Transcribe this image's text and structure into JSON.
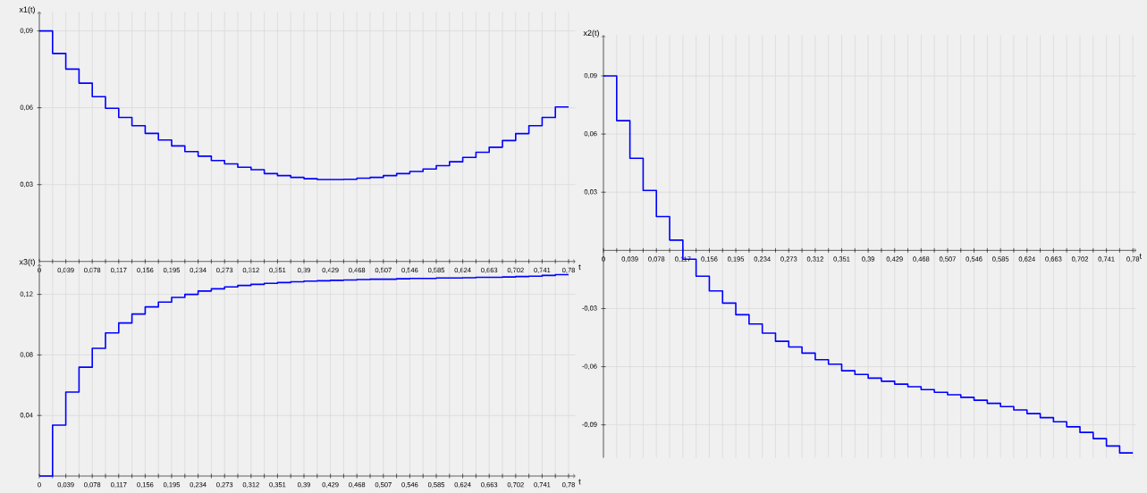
{
  "chart_data": [
    {
      "type": "step",
      "xlabel": "t",
      "ylabel": "x1(t)",
      "color": "#0000ff",
      "grid": true,
      "x": [
        0,
        0.0195,
        0.039,
        0.0585,
        0.078,
        0.0975,
        0.117,
        0.1365,
        0.156,
        0.1755,
        0.195,
        0.2145,
        0.234,
        0.2535,
        0.273,
        0.2925,
        0.312,
        0.3315,
        0.351,
        0.3705,
        0.39,
        0.4095,
        0.429,
        0.4485,
        0.468,
        0.4875,
        0.507,
        0.5265,
        0.546,
        0.5655,
        0.585,
        0.6045,
        0.624,
        0.6435,
        0.663,
        0.6825,
        0.702,
        0.7215,
        0.741,
        0.7605,
        0.78
      ],
      "values": [
        0.09,
        0.0812,
        0.0751,
        0.0696,
        0.0643,
        0.0598,
        0.0562,
        0.053,
        0.05,
        0.0474,
        0.0451,
        0.0429,
        0.0411,
        0.0394,
        0.0381,
        0.0368,
        0.0358,
        0.0343,
        0.0335,
        0.0328,
        0.0323,
        0.032,
        0.032,
        0.0321,
        0.0325,
        0.0328,
        0.0335,
        0.0343,
        0.0351,
        0.0361,
        0.0374,
        0.0389,
        0.0406,
        0.0426,
        0.0446,
        0.0472,
        0.0499,
        0.053,
        0.0562,
        0.0603,
        0.0603
      ],
      "xlim": [
        0,
        0.79
      ],
      "ylim": [
        0,
        0.0975
      ],
      "xticks": [
        0,
        {
          "value": 0.0195,
          "label": null
        },
        {
          "value": 0.039,
          "label": "0,039"
        },
        {
          "value": 0.0585,
          "label": null
        },
        {
          "value": 0.078,
          "label": "0,078"
        },
        {
          "value": 0.0975,
          "label": null
        },
        {
          "value": 0.117,
          "label": "0,117"
        },
        {
          "value": 0.1365,
          "label": null
        },
        {
          "value": 0.156,
          "label": "0,156"
        },
        {
          "value": 0.1755,
          "label": null
        },
        {
          "value": 0.195,
          "label": "0,195"
        },
        {
          "value": 0.2145,
          "label": null
        },
        {
          "value": 0.234,
          "label": "0,234"
        },
        {
          "value": 0.2535,
          "label": null
        },
        {
          "value": 0.273,
          "label": "0,273"
        },
        {
          "value": 0.2925,
          "label": null
        },
        {
          "value": 0.312,
          "label": "0,312"
        },
        {
          "value": 0.3315,
          "label": null
        },
        {
          "value": 0.351,
          "label": "0,351"
        },
        {
          "value": 0.3705,
          "label": null
        },
        {
          "value": 0.39,
          "label": "0,39"
        },
        {
          "value": 0.4095,
          "label": null
        },
        {
          "value": 0.429,
          "label": "0,429"
        },
        {
          "value": 0.4485,
          "label": null
        },
        {
          "value": 0.468,
          "label": "0,468"
        },
        {
          "value": 0.4875,
          "label": null
        },
        {
          "value": 0.507,
          "label": "0,507"
        },
        {
          "value": 0.5265,
          "label": null
        },
        {
          "value": 0.546,
          "label": "0,546"
        },
        {
          "value": 0.5655,
          "label": null
        },
        {
          "value": 0.585,
          "label": "0,585"
        },
        {
          "value": 0.6045,
          "label": null
        },
        {
          "value": 0.624,
          "label": "0,624"
        },
        {
          "value": 0.6435,
          "label": null
        },
        {
          "value": 0.663,
          "label": "0,663"
        },
        {
          "value": 0.6825,
          "label": null
        },
        {
          "value": 0.702,
          "label": "0,702"
        },
        {
          "value": 0.7215,
          "label": null
        },
        {
          "value": 0.741,
          "label": "0,741"
        },
        {
          "value": 0.7605,
          "label": null
        },
        {
          "value": 0.78,
          "label": "0,78"
        }
      ],
      "yticks": [
        {
          "value": 0.03,
          "label": "0,03"
        },
        {
          "value": 0.06,
          "label": "0,06"
        },
        {
          "value": 0.09,
          "label": "0,09"
        }
      ]
    },
    {
      "type": "step",
      "xlabel": "t",
      "ylabel": "x2(t)",
      "color": "#0000ff",
      "grid": true,
      "x": [
        0,
        0.0195,
        0.039,
        0.0585,
        0.078,
        0.0975,
        0.117,
        0.1365,
        0.156,
        0.1755,
        0.195,
        0.2145,
        0.234,
        0.2535,
        0.273,
        0.2925,
        0.312,
        0.3315,
        0.351,
        0.3705,
        0.39,
        0.4095,
        0.429,
        0.4485,
        0.468,
        0.4875,
        0.507,
        0.5265,
        0.546,
        0.5655,
        0.585,
        0.6045,
        0.624,
        0.6435,
        0.663,
        0.6825,
        0.702,
        0.7215,
        0.741,
        0.7605,
        0.78
      ],
      "values": [
        0.09,
        0.0669,
        0.0475,
        0.0309,
        0.0174,
        0.0053,
        -0.0046,
        -0.0133,
        -0.0209,
        -0.0272,
        -0.0332,
        -0.038,
        -0.0427,
        -0.0469,
        -0.0498,
        -0.053,
        -0.0564,
        -0.0587,
        -0.0621,
        -0.064,
        -0.0659,
        -0.0675,
        -0.069,
        -0.0703,
        -0.0718,
        -0.0732,
        -0.0745,
        -0.0758,
        -0.0773,
        -0.0789,
        -0.0806,
        -0.0823,
        -0.0842,
        -0.0863,
        -0.0884,
        -0.091,
        -0.0939,
        -0.0971,
        -0.1009,
        -0.1045,
        -0.1045
      ],
      "xlim": [
        0,
        0.785
      ],
      "ylim": [
        -0.107,
        0.111
      ],
      "xticks": [
        0,
        {
          "value": 0.0195,
          "label": null
        },
        {
          "value": 0.039,
          "label": "0,039"
        },
        {
          "value": 0.0585,
          "label": null
        },
        {
          "value": 0.078,
          "label": "0,078"
        },
        {
          "value": 0.0975,
          "label": null
        },
        {
          "value": 0.117,
          "label": "0,117"
        },
        {
          "value": 0.1365,
          "label": null
        },
        {
          "value": 0.156,
          "label": "0,156"
        },
        {
          "value": 0.1755,
          "label": null
        },
        {
          "value": 0.195,
          "label": "0,195"
        },
        {
          "value": 0.2145,
          "label": null
        },
        {
          "value": 0.234,
          "label": "0,234"
        },
        {
          "value": 0.2535,
          "label": null
        },
        {
          "value": 0.273,
          "label": "0,273"
        },
        {
          "value": 0.2925,
          "label": null
        },
        {
          "value": 0.312,
          "label": "0,312"
        },
        {
          "value": 0.3315,
          "label": null
        },
        {
          "value": 0.351,
          "label": "0,351"
        },
        {
          "value": 0.3705,
          "label": null
        },
        {
          "value": 0.39,
          "label": "0,39"
        },
        {
          "value": 0.4095,
          "label": null
        },
        {
          "value": 0.429,
          "label": "0,429"
        },
        {
          "value": 0.4485,
          "label": null
        },
        {
          "value": 0.468,
          "label": "0,468"
        },
        {
          "value": 0.4875,
          "label": null
        },
        {
          "value": 0.507,
          "label": "0,507"
        },
        {
          "value": 0.5265,
          "label": null
        },
        {
          "value": 0.546,
          "label": "0,546"
        },
        {
          "value": 0.5655,
          "label": null
        },
        {
          "value": 0.585,
          "label": "0,585"
        },
        {
          "value": 0.6045,
          "label": null
        },
        {
          "value": 0.624,
          "label": "0,624"
        },
        {
          "value": 0.6435,
          "label": null
        },
        {
          "value": 0.663,
          "label": "0,663"
        },
        {
          "value": 0.6825,
          "label": null
        },
        {
          "value": 0.702,
          "label": "0,702"
        },
        {
          "value": 0.7215,
          "label": null
        },
        {
          "value": 0.741,
          "label": "0,741"
        },
        {
          "value": 0.7605,
          "label": null
        },
        {
          "value": 0.78,
          "label": "0,78"
        }
      ],
      "yticks": [
        {
          "value": -0.09,
          "label": "-0,09"
        },
        {
          "value": -0.06,
          "label": "-0,06"
        },
        {
          "value": -0.03,
          "label": "-0,03"
        },
        {
          "value": 0.03,
          "label": "0,03"
        },
        {
          "value": 0.06,
          "label": "0,06"
        },
        {
          "value": 0.09,
          "label": "0,09"
        }
      ]
    },
    {
      "type": "step",
      "xlabel": "t",
      "ylabel": "x3(t)",
      "color": "#0000ff",
      "grid": true,
      "x": [
        0,
        0.0195,
        0.039,
        0.0585,
        0.078,
        0.0975,
        0.117,
        0.1365,
        0.156,
        0.1755,
        0.195,
        0.2145,
        0.234,
        0.2535,
        0.273,
        0.2925,
        0.312,
        0.3315,
        0.351,
        0.3705,
        0.39,
        0.4095,
        0.429,
        0.4485,
        0.468,
        0.4875,
        0.507,
        0.5265,
        0.546,
        0.5655,
        0.585,
        0.6045,
        0.624,
        0.6435,
        0.663,
        0.6825,
        0.702,
        0.7215,
        0.741,
        0.7605,
        0.78
      ],
      "values": [
        0,
        0.0336,
        0.0555,
        0.0719,
        0.0844,
        0.0945,
        0.1011,
        0.107,
        0.1117,
        0.1149,
        0.118,
        0.12,
        0.1222,
        0.1237,
        0.1249,
        0.1259,
        0.1266,
        0.1273,
        0.1278,
        0.1283,
        0.1288,
        0.129,
        0.1293,
        0.1295,
        0.1298,
        0.13,
        0.13,
        0.1303,
        0.1305,
        0.1305,
        0.1308,
        0.1308,
        0.131,
        0.1313,
        0.1313,
        0.1315,
        0.1318,
        0.132,
        0.1325,
        0.133,
        0.133
      ],
      "xlim": [
        0,
        0.79
      ],
      "ylim": [
        0,
        0.14
      ],
      "xticks": [
        0,
        {
          "value": 0.0195,
          "label": null
        },
        {
          "value": 0.039,
          "label": "0,039"
        },
        {
          "value": 0.0585,
          "label": null
        },
        {
          "value": 0.078,
          "label": "0,078"
        },
        {
          "value": 0.0975,
          "label": null
        },
        {
          "value": 0.117,
          "label": "0,117"
        },
        {
          "value": 0.1365,
          "label": null
        },
        {
          "value": 0.156,
          "label": "0,156"
        },
        {
          "value": 0.1755,
          "label": null
        },
        {
          "value": 0.195,
          "label": "0,195"
        },
        {
          "value": 0.2145,
          "label": null
        },
        {
          "value": 0.234,
          "label": "0,234"
        },
        {
          "value": 0.2535,
          "label": null
        },
        {
          "value": 0.273,
          "label": "0,273"
        },
        {
          "value": 0.2925,
          "label": null
        },
        {
          "value": 0.312,
          "label": "0,312"
        },
        {
          "value": 0.3315,
          "label": null
        },
        {
          "value": 0.351,
          "label": "0,351"
        },
        {
          "value": 0.3705,
          "label": null
        },
        {
          "value": 0.39,
          "label": "0,39"
        },
        {
          "value": 0.4095,
          "label": null
        },
        {
          "value": 0.429,
          "label": "0,429"
        },
        {
          "value": 0.4485,
          "label": null
        },
        {
          "value": 0.468,
          "label": "0,468"
        },
        {
          "value": 0.4875,
          "label": null
        },
        {
          "value": 0.507,
          "label": "0,507"
        },
        {
          "value": 0.5265,
          "label": null
        },
        {
          "value": 0.546,
          "label": "0,546"
        },
        {
          "value": 0.5655,
          "label": null
        },
        {
          "value": 0.585,
          "label": "0,585"
        },
        {
          "value": 0.6045,
          "label": null
        },
        {
          "value": 0.624,
          "label": "0,624"
        },
        {
          "value": 0.6435,
          "label": null
        },
        {
          "value": 0.663,
          "label": "0,663"
        },
        {
          "value": 0.6825,
          "label": null
        },
        {
          "value": 0.702,
          "label": "0,702"
        },
        {
          "value": 0.7215,
          "label": null
        },
        {
          "value": 0.741,
          "label": "0,741"
        },
        {
          "value": 0.7605,
          "label": null
        },
        {
          "value": 0.78,
          "label": "0,78"
        }
      ],
      "yticks": [
        {
          "value": 0.04,
          "label": "0,04"
        },
        {
          "value": 0.08,
          "label": "0,08"
        },
        {
          "value": 0.12,
          "label": "0,12"
        }
      ]
    }
  ]
}
